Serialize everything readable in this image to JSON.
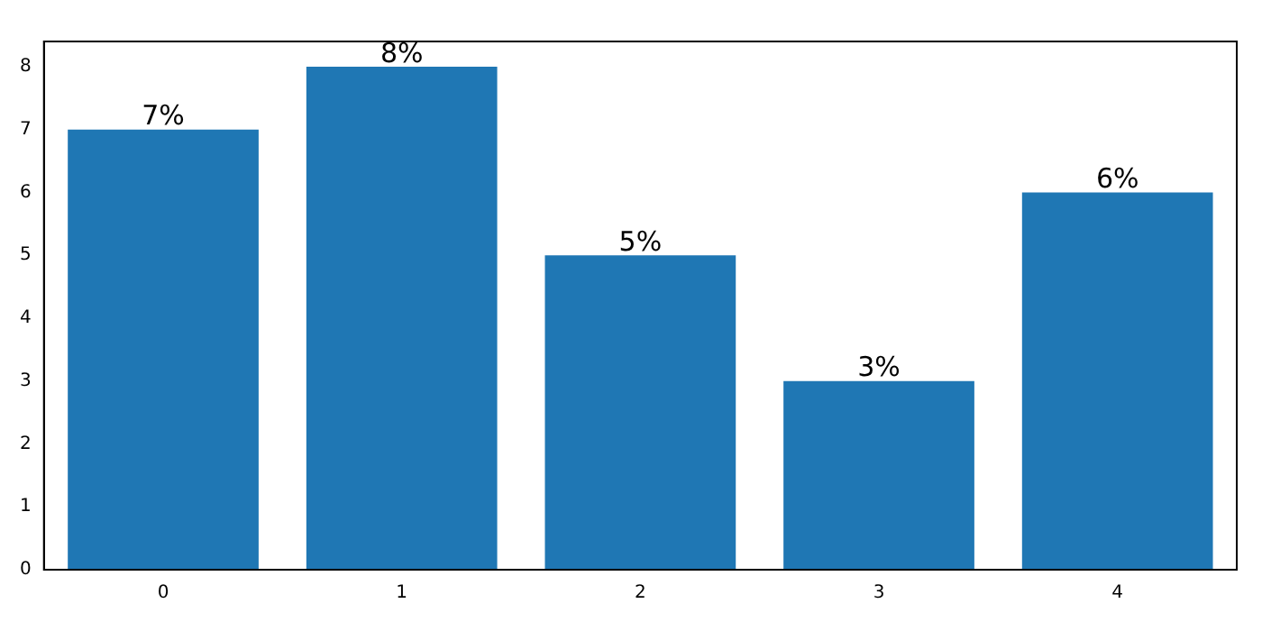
{
  "chart_data": {
    "type": "bar",
    "categories": [
      "0",
      "1",
      "2",
      "3",
      "4"
    ],
    "values": [
      7,
      8,
      5,
      3,
      6
    ],
    "value_labels": [
      "7%",
      "8%",
      "5%",
      "3%",
      "6%"
    ],
    "color": "#1f77b4",
    "ylim": [
      0,
      8.4
    ],
    "yticks": [
      0,
      1,
      2,
      3,
      4,
      5,
      6,
      7,
      8
    ],
    "grid": false,
    "legend": false
  }
}
